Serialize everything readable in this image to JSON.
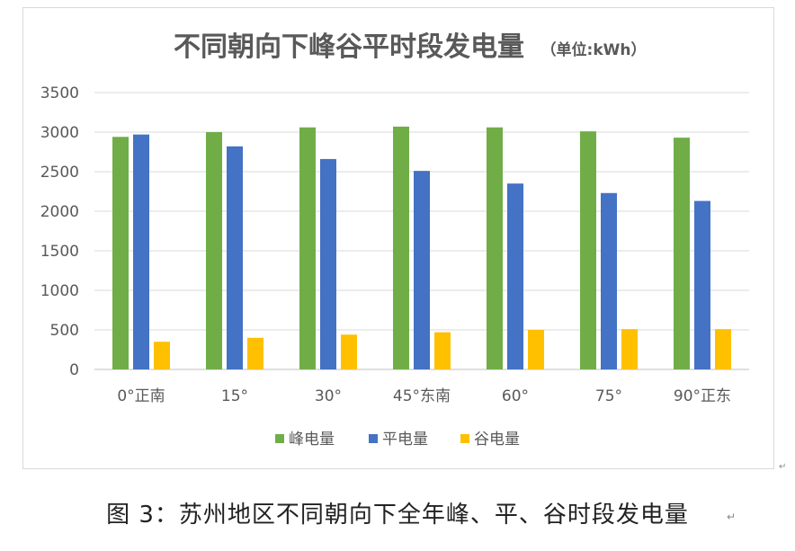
{
  "chart_data": {
    "type": "bar",
    "title": "不同朝向下峰谷平时段发电量",
    "title_unit": "（单位:kWh）",
    "categories": [
      "0°正南",
      "15°",
      "30°",
      "45°东南",
      "60°",
      "75°",
      "90°正东"
    ],
    "series": [
      {
        "name": "峰电量",
        "color": "#70ad47",
        "values": [
          2940,
          3000,
          3060,
          3070,
          3060,
          3010,
          2930
        ]
      },
      {
        "name": "平电量",
        "color": "#4472c4",
        "values": [
          2970,
          2820,
          2660,
          2510,
          2350,
          2230,
          2130
        ]
      },
      {
        "name": "谷电量",
        "color": "#ffc000",
        "values": [
          350,
          400,
          440,
          470,
          500,
          510,
          510
        ]
      }
    ],
    "ylim": [
      0,
      3500
    ],
    "yticks": [
      0,
      500,
      1000,
      1500,
      2000,
      2500,
      3000,
      3500
    ],
    "grid": true,
    "legend_position": "bottom"
  },
  "caption": "图 3：苏州地区不同朝向下全年峰、平、谷时段发电量",
  "caption_mark": "↵",
  "corner_mark": "↵"
}
